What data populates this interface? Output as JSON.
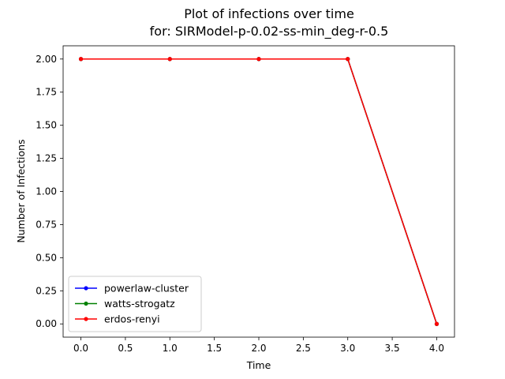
{
  "chart_data": {
    "type": "line",
    "title": "Plot of infections over time",
    "subtitle": "for: SIRModel-p-0.02-ss-min_deg-r-0.5",
    "xlabel": "Time",
    "ylabel": "Number of Infections",
    "xlim": [
      -0.2,
      4.2
    ],
    "ylim": [
      -0.1,
      2.1
    ],
    "xticks": [
      "0.0",
      "0.5",
      "1.0",
      "1.5",
      "2.0",
      "2.5",
      "3.0",
      "3.5",
      "4.0"
    ],
    "yticks": [
      "0.00",
      "0.25",
      "0.50",
      "0.75",
      "1.00",
      "1.25",
      "1.50",
      "1.75",
      "2.00"
    ],
    "grid": false,
    "legend_position": "lower-left",
    "x": [
      0,
      1,
      2,
      3,
      4
    ],
    "series": [
      {
        "name": "powerlaw-cluster",
        "color": "#0000ff",
        "values": [
          2,
          2,
          2,
          2,
          0
        ]
      },
      {
        "name": "watts-strogatz",
        "color": "#008000",
        "values": [
          2,
          2,
          2,
          2,
          0
        ]
      },
      {
        "name": "erdos-renyi",
        "color": "#ff0000",
        "values": [
          2,
          2,
          2,
          2,
          0
        ]
      }
    ]
  }
}
